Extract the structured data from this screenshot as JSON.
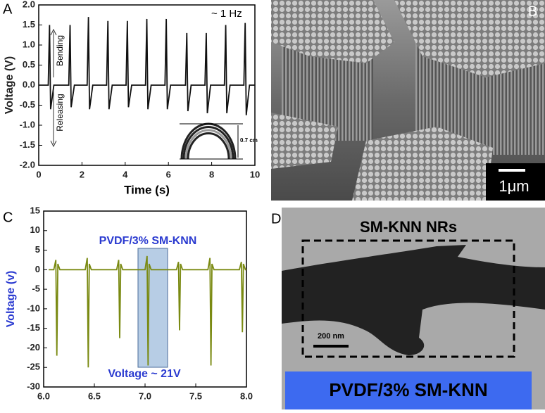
{
  "chart_data": [
    {
      "type": "line",
      "label": "A",
      "xlabel": "Time (s)",
      "ylabel": "Voltage (V)",
      "color": "#111111",
      "annotations": {
        "frequency": "~ 1 Hz",
        "bending": "Bending",
        "releasing": "Releasing",
        "inset": "0.7 cm"
      },
      "x": [
        0,
        0.44,
        0.5,
        0.55,
        0.7,
        1.39,
        1.45,
        1.5,
        1.65,
        2.24,
        2.3,
        2.35,
        2.5,
        3.14,
        3.2,
        3.25,
        3.4,
        4.04,
        4.1,
        4.15,
        4.3,
        4.94,
        5.0,
        5.05,
        5.2,
        5.84,
        5.9,
        5.95,
        6.1,
        6.79,
        6.85,
        6.9,
        7.05,
        7.69,
        7.75,
        7.8,
        7.95,
        8.59,
        8.65,
        8.7,
        8.85,
        9.49,
        9.55,
        9.6,
        9.75,
        10
      ],
      "values": [
        0,
        0,
        1.5,
        -0.6,
        0,
        0,
        1.5,
        -0.55,
        0,
        0,
        1.7,
        -0.6,
        0,
        0,
        1.6,
        -0.6,
        0,
        0,
        1.6,
        -0.55,
        0,
        0,
        1.65,
        -0.6,
        0,
        0,
        1.65,
        -0.6,
        0,
        0,
        1.3,
        -0.65,
        0,
        0,
        1.3,
        -0.7,
        0,
        0,
        1.5,
        -0.7,
        0,
        0,
        1.55,
        -0.75,
        0,
        0
      ],
      "xlim": [
        0,
        10
      ],
      "ylim": [
        -2,
        2
      ],
      "xticks": [
        0,
        2,
        4,
        6,
        8,
        10
      ],
      "yticks": [
        {
          "value": -2,
          "label": "-2.0"
        },
        -1.5,
        {
          "value": -1,
          "label": "-1.0"
        },
        -0.5,
        {
          "value": 0,
          "label": "0.0"
        },
        0.5,
        {
          "value": 1,
          "label": "1.0"
        },
        1.5,
        {
          "value": 2,
          "label": "2.0"
        }
      ]
    },
    {
      "type": "line",
      "label": "C",
      "ylabel": "Voltage (v)",
      "color": "#7a8a12",
      "annotations": {
        "material": "PVDF/3% SM-KNN",
        "voltage": "Voltage ~ 21V"
      },
      "x": [
        6.05,
        6.1,
        6.12,
        6.13,
        6.14,
        6.16,
        6.41,
        6.43,
        6.44,
        6.45,
        6.47,
        6.72,
        6.74,
        6.75,
        6.76,
        6.78,
        7.0,
        7.02,
        7.03,
        7.04,
        7.06,
        7.31,
        7.33,
        7.34,
        7.35,
        7.37,
        7.62,
        7.64,
        7.65,
        7.66,
        7.68,
        7.93,
        7.95,
        7.96,
        7.97,
        7.99,
        8.0
      ],
      "values": [
        0,
        0,
        2.5,
        -22,
        1.5,
        0,
        0,
        3,
        -25,
        1.5,
        0,
        0,
        2.5,
        -17.5,
        1.5,
        0,
        0,
        3.5,
        -24.5,
        1.5,
        0,
        0,
        2,
        -15.5,
        1.5,
        0,
        0,
        3,
        -24.5,
        1.5,
        0,
        0,
        2,
        -16,
        1.5,
        0,
        0
      ],
      "xlim": [
        6,
        8
      ],
      "ylim": [
        -30,
        15
      ],
      "xticks": [
        {
          "value": 6,
          "label": "6.0"
        },
        6.5,
        {
          "value": 7,
          "label": "7.0"
        },
        7.5,
        {
          "value": 8,
          "label": "8.0"
        }
      ],
      "yticks": [
        -30,
        -25,
        -20,
        -15,
        -10,
        -5,
        0,
        5,
        10,
        15
      ]
    }
  ],
  "images": [
    {
      "label": "B",
      "scale_bar": "1μm"
    },
    {
      "label": "D",
      "box_label": "SM-KNN NRs",
      "scale_bar": "200 nm",
      "caption": "PVDF/3% SM-KNN"
    }
  ]
}
